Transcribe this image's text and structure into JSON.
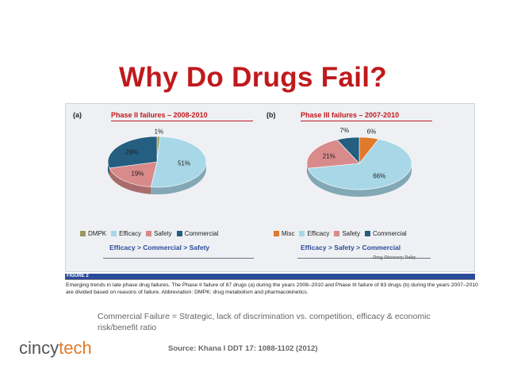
{
  "title": "Why Do Drugs Fail?",
  "figure": {
    "panel_a_letter": "(a)",
    "panel_b_letter": "(b)",
    "panel_a_conclusion": "Efficacy > Commercial > Safety",
    "panel_b_conclusion": "Efficacy > Safety > Commercial",
    "journal": "Drug Discovery Today",
    "caption_label": "FIGURE 2",
    "caption": "Emerging trends in late phase drug failures. The Phase II failure of 87 drugs (a) during the years 2008–2010 and Phase III failure of 83 drugs (b) during the years 2007–2010 are divided based on reasons of failure. Abbreviation: DMPK: drug metabolism and pharmacokinetics."
  },
  "note": "Commercial Failure = Strategic, lack of discrimination vs. competition, efficacy & economic risk/benefit ratio",
  "source": "Source:  Khana I DDT 17: 1088-1102 (2012)",
  "logo": {
    "part1": "cincy",
    "part2": "tech"
  },
  "colors": {
    "title": "#c0191d",
    "dmpk": "#9a9a5c",
    "efficacy": "#a8d8e8",
    "safety": "#d98a8a",
    "commercial": "#245e80",
    "misc": "#e07a2a"
  },
  "chart_data": [
    {
      "type": "pie",
      "title": "Phase II failures – 2008-2010",
      "categories": [
        "DMPK",
        "Efficacy",
        "Safety",
        "Commercial"
      ],
      "values": [
        1,
        51,
        19,
        29
      ],
      "labels": [
        "1%",
        "51%",
        "19%",
        "29%"
      ],
      "legend": "bottom"
    },
    {
      "type": "pie",
      "title": "Phase III failures – 2007-2010",
      "categories": [
        "Misc",
        "Efficacy",
        "Safety",
        "Commercial"
      ],
      "values": [
        6,
        66,
        21,
        7
      ],
      "labels": [
        "6%",
        "66%",
        "21%",
        "7%"
      ],
      "legend": "bottom"
    }
  ]
}
